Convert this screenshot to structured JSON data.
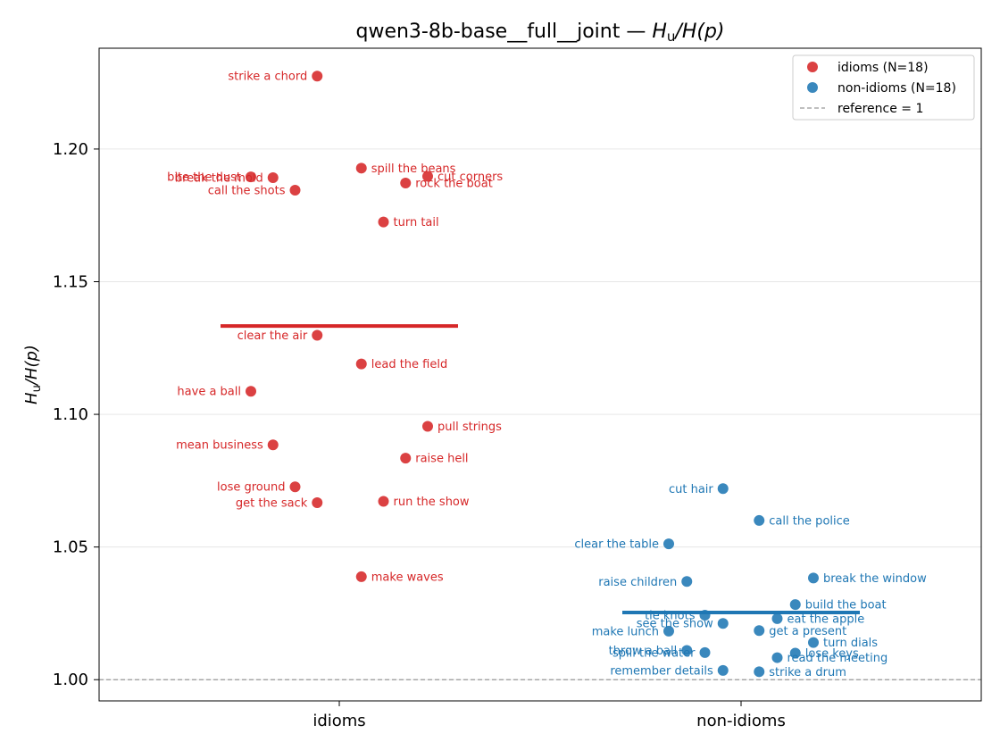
{
  "chart_data": {
    "type": "scatter",
    "title": "qwen3-8b-base__full__joint — H_u/H(p)",
    "title_parts": {
      "prefix": "qwen3-8b-base__full__joint — ",
      "h": "H",
      "sub": "u",
      "rest": "/H(p)"
    },
    "ylabel": "H_u/H(p)",
    "xlabel": "",
    "categories": [
      "idioms",
      "non-idioms"
    ],
    "ylim": [
      0.992,
      1.238
    ],
    "yticks": [
      "1.00",
      "1.05",
      "1.10",
      "1.15",
      "1.20"
    ],
    "grid": true,
    "legend_position": "top-right",
    "reference": {
      "value": 1.0,
      "label": "reference = 1",
      "color": "#999999"
    },
    "series": [
      {
        "name": "idioms (N=18)",
        "color": "#d62728",
        "category": "idioms",
        "mean": 1.1333,
        "points": [
          {
            "label": "strike a chord",
            "x": -0.055,
            "y": 1.2275,
            "side": "left"
          },
          {
            "label": "bite the dust",
            "x": -0.22,
            "y": 1.1895,
            "side": "left"
          },
          {
            "label": "break the mold",
            "x": -0.165,
            "y": 1.1892,
            "side": "left"
          },
          {
            "label": "call the shots",
            "x": -0.11,
            "y": 1.1845,
            "side": "left"
          },
          {
            "label": "spill the beans",
            "x": 0.055,
            "y": 1.1928,
            "side": "right"
          },
          {
            "label": "cut corners",
            "x": 0.22,
            "y": 1.1897,
            "side": "right"
          },
          {
            "label": "rock the boat",
            "x": 0.165,
            "y": 1.1872,
            "side": "right"
          },
          {
            "label": "turn tail",
            "x": 0.11,
            "y": 1.1725,
            "side": "right"
          },
          {
            "label": "clear the air",
            "x": -0.055,
            "y": 1.1298,
            "side": "left"
          },
          {
            "label": "lead the field",
            "x": 0.055,
            "y": 1.119,
            "side": "right"
          },
          {
            "label": "have a ball",
            "x": -0.22,
            "y": 1.1087,
            "side": "left"
          },
          {
            "label": "pull strings",
            "x": 0.22,
            "y": 1.0955,
            "side": "right"
          },
          {
            "label": "mean business",
            "x": -0.165,
            "y": 1.0885,
            "side": "left"
          },
          {
            "label": "raise hell",
            "x": 0.165,
            "y": 1.0835,
            "side": "right"
          },
          {
            "label": "lose ground",
            "x": -0.11,
            "y": 1.0727,
            "side": "left"
          },
          {
            "label": "get the sack",
            "x": -0.055,
            "y": 1.0667,
            "side": "left"
          },
          {
            "label": "run the show",
            "x": 0.11,
            "y": 1.0672,
            "side": "right"
          },
          {
            "label": "make waves",
            "x": 0.055,
            "y": 1.0388,
            "side": "right"
          }
        ]
      },
      {
        "name": "non-idioms (N=18)",
        "color": "#1f77b4",
        "category": "non-idioms",
        "mean": 1.0253,
        "points": [
          {
            "label": "cut hair",
            "x": -0.045,
            "y": 1.072,
            "side": "left"
          },
          {
            "label": "call the police",
            "x": 0.045,
            "y": 1.06,
            "side": "right"
          },
          {
            "label": "clear the table",
            "x": -0.18,
            "y": 1.0512,
            "side": "left"
          },
          {
            "label": "raise children",
            "x": -0.135,
            "y": 1.037,
            "side": "left"
          },
          {
            "label": "break the window",
            "x": 0.18,
            "y": 1.0383,
            "side": "right"
          },
          {
            "label": "build the boat",
            "x": 0.135,
            "y": 1.0283,
            "side": "right"
          },
          {
            "label": "tie knots",
            "x": -0.09,
            "y": 1.0243,
            "side": "left"
          },
          {
            "label": "see the show",
            "x": -0.045,
            "y": 1.0212,
            "side": "left"
          },
          {
            "label": "eat the apple",
            "x": 0.09,
            "y": 1.023,
            "side": "right"
          },
          {
            "label": "make lunch",
            "x": -0.18,
            "y": 1.0183,
            "side": "left"
          },
          {
            "label": "get a present",
            "x": 0.045,
            "y": 1.0185,
            "side": "right"
          },
          {
            "label": "turn dials",
            "x": 0.18,
            "y": 1.014,
            "side": "right"
          },
          {
            "label": "throw a ball",
            "x": -0.135,
            "y": 1.011,
            "side": "left"
          },
          {
            "label": "spill the water",
            "x": -0.09,
            "y": 1.0102,
            "side": "left"
          },
          {
            "label": "lose keys",
            "x": 0.135,
            "y": 1.01,
            "side": "right"
          },
          {
            "label": "read the meeting",
            "x": 0.09,
            "y": 1.0083,
            "side": "right"
          },
          {
            "label": "remember details",
            "x": -0.045,
            "y": 1.0035,
            "side": "left"
          },
          {
            "label": "strike a drum",
            "x": 0.045,
            "y": 1.003,
            "side": "right"
          }
        ]
      }
    ]
  }
}
